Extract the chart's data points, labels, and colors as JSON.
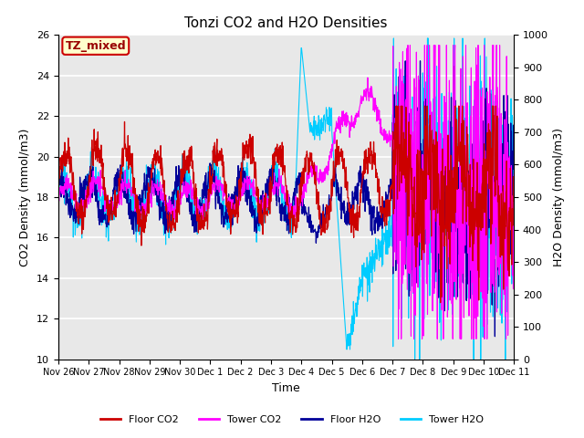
{
  "title": "Tonzi CO2 and H2O Densities",
  "xlabel": "Time",
  "ylabel_left": "CO2 Density (mmol/m3)",
  "ylabel_right": "H2O Density (mmol/m3)",
  "annotation": "TZ_mixed",
  "annotation_color": "#990000",
  "annotation_bg": "#ffffcc",
  "annotation_border": "#cc0000",
  "ylim_left": [
    10,
    26
  ],
  "ylim_right": [
    0,
    1000
  ],
  "yticks_left": [
    10,
    12,
    14,
    16,
    18,
    20,
    22,
    24,
    26
  ],
  "yticks_right": [
    0,
    100,
    200,
    300,
    400,
    500,
    600,
    700,
    800,
    900,
    1000
  ],
  "xtick_labels": [
    "Nov 26",
    "Nov 27",
    "Nov 28",
    "Nov 29",
    "Nov 30",
    "Dec 1",
    "Dec 2",
    "Dec 3",
    "Dec 4",
    "Dec 5",
    "Dec 6",
    "Dec 7",
    "Dec 8",
    "Dec 9",
    "Dec 10",
    "Dec 11"
  ],
  "colors": {
    "floor_co2": "#cc0000",
    "tower_co2": "#ff00ff",
    "floor_h2o": "#000099",
    "tower_h2o": "#00ccff"
  },
  "legend": [
    "Floor CO2",
    "Tower CO2",
    "Floor H2O",
    "Tower H2O"
  ],
  "plot_bg_color": "#e8e8e8",
  "grid_color": "#ffffff",
  "seed": 42
}
